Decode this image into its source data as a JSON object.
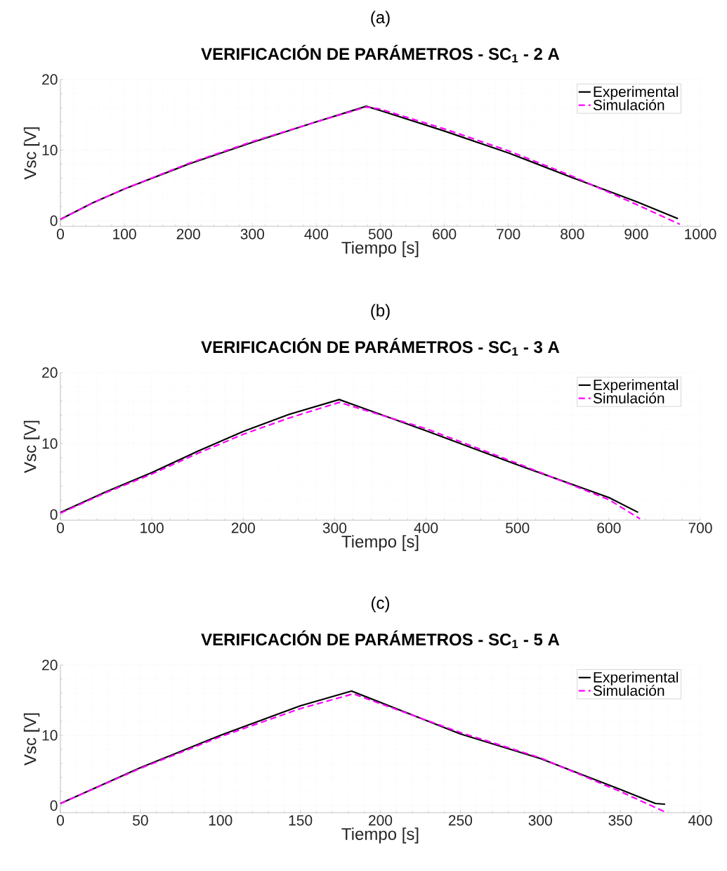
{
  "chart_data": [
    {
      "type": "line",
      "subtitle": "(a)",
      "title": "VERIFICACIÓN DE PARÁMETROS - SC$_{1}$ - 2 A",
      "xlabel": "Tiempo [s]",
      "ylabel": "Vsc [V]",
      "xlim": [
        0,
        1000
      ],
      "ylim": [
        -0.8,
        20
      ],
      "xticks": [
        0,
        100,
        200,
        300,
        400,
        500,
        600,
        700,
        800,
        900,
        1000
      ],
      "yticks": [
        0,
        10,
        20
      ],
      "grid": true,
      "legend": "top right",
      "marker": "none",
      "series": [
        {
          "name": "Experimental",
          "color": "#000000",
          "line_style": "solid",
          "x": [
            0,
            50,
            100,
            200,
            300,
            400,
            478,
            500,
            600,
            700,
            800,
            900,
            965
          ],
          "values": [
            0.2,
            2.5,
            4.5,
            8.0,
            11.1,
            14.0,
            16.2,
            15.6,
            12.7,
            9.6,
            6.1,
            2.7,
            0.3
          ]
        },
        {
          "name": "Simulación",
          "color": "#ff00ff",
          "line_style": "dashed",
          "x": [
            0,
            50,
            100,
            200,
            300,
            400,
            478,
            500,
            600,
            700,
            800,
            900,
            968
          ],
          "values": [
            0.2,
            2.5,
            4.5,
            8.1,
            11.2,
            14.0,
            16.1,
            15.8,
            13.0,
            9.9,
            6.3,
            2.3,
            -0.5
          ]
        }
      ]
    },
    {
      "type": "line",
      "subtitle": "(b)",
      "title": "VERIFICACIÓN DE PARÁMETROS - SC$_{1}$ - 3 A",
      "xlabel": "Tiempo [s]",
      "ylabel": "Vsc [V]",
      "xlim": [
        0,
        700
      ],
      "ylim": [
        -0.8,
        20
      ],
      "xticks": [
        0,
        100,
        200,
        300,
        400,
        500,
        600,
        700
      ],
      "yticks": [
        0,
        10,
        20
      ],
      "grid": true,
      "legend": "top right",
      "marker": "none",
      "series": [
        {
          "name": "Experimental",
          "color": "#000000",
          "line_style": "solid",
          "x": [
            0,
            50,
            100,
            150,
            200,
            250,
            305,
            400,
            500,
            600,
            632
          ],
          "values": [
            0.3,
            3.2,
            5.9,
            8.9,
            11.7,
            14.1,
            16.2,
            11.8,
            7.0,
            2.4,
            0.3
          ]
        },
        {
          "name": "Simulación",
          "color": "#ff00ff",
          "line_style": "dashed",
          "x": [
            0,
            50,
            100,
            150,
            200,
            250,
            305,
            400,
            500,
            600,
            634
          ],
          "values": [
            0.2,
            3.1,
            5.7,
            8.6,
            11.3,
            13.6,
            15.8,
            12.1,
            7.2,
            2.1,
            -0.6
          ]
        }
      ]
    },
    {
      "type": "line",
      "subtitle": "(c)",
      "title": "VERIFICACIÓN DE PARÁMETROS - SC$_{1}$ - 5 A",
      "xlabel": "Tiempo [s]",
      "ylabel": "Vsc [V]",
      "xlim": [
        0,
        400
      ],
      "ylim": [
        -1,
        20
      ],
      "xticks": [
        0,
        50,
        100,
        150,
        200,
        250,
        300,
        350,
        400
      ],
      "yticks": [
        0,
        10,
        20
      ],
      "grid": true,
      "legend": "top right",
      "marker": "none",
      "series": [
        {
          "name": "Experimental",
          "color": "#000000",
          "line_style": "solid",
          "x": [
            0,
            50,
            100,
            150,
            182,
            250,
            300,
            350,
            372,
            378
          ],
          "values": [
            0.3,
            5.4,
            10.0,
            14.2,
            16.3,
            10.2,
            6.7,
            2.3,
            0.3,
            0.2
          ]
        },
        {
          "name": "Simulación",
          "color": "#ff00ff",
          "line_style": "dashed",
          "x": [
            0,
            50,
            100,
            150,
            183,
            250,
            300,
            350,
            378
          ],
          "values": [
            0.3,
            5.3,
            9.8,
            13.8,
            15.9,
            10.4,
            6.8,
            2.0,
            -0.9
          ]
        }
      ]
    }
  ]
}
